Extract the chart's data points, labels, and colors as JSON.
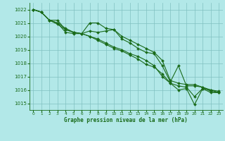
{
  "title": "Graphe pression niveau de la mer (hPa)",
  "bg_color": "#b2e8e8",
  "grid_color": "#80c0c0",
  "line_color": "#1a6b1a",
  "xlim": [
    -0.5,
    23.5
  ],
  "ylim": [
    1014.5,
    1022.5
  ],
  "yticks": [
    1015,
    1016,
    1017,
    1018,
    1019,
    1020,
    1021,
    1022
  ],
  "xticks": [
    0,
    1,
    2,
    3,
    4,
    5,
    6,
    7,
    8,
    9,
    10,
    11,
    12,
    13,
    14,
    15,
    16,
    17,
    18,
    19,
    20,
    21,
    22,
    23
  ],
  "series": [
    [
      1022.0,
      1021.8,
      1021.2,
      1021.2,
      1020.5,
      1020.3,
      1020.2,
      1021.0,
      1021.0,
      1020.6,
      1020.5,
      1019.8,
      1019.5,
      1019.1,
      1018.8,
      1018.7,
      1017.8,
      1016.6,
      1017.8,
      1016.3,
      1016.3,
      1016.2,
      1015.9,
      1015.8
    ],
    [
      1022.0,
      1021.8,
      1021.2,
      1021.0,
      1020.3,
      1020.2,
      1020.2,
      1020.4,
      1020.3,
      1020.4,
      1020.5,
      1020.0,
      1019.7,
      1019.4,
      1019.1,
      1018.8,
      1018.2,
      1016.7,
      1016.5,
      1016.4,
      1016.4,
      1016.2,
      1016.0,
      1015.9
    ],
    [
      1022.0,
      1021.8,
      1021.2,
      1020.9,
      1020.5,
      1020.3,
      1020.2,
      1020.0,
      1019.8,
      1019.5,
      1019.2,
      1019.0,
      1018.7,
      1018.5,
      1018.2,
      1017.8,
      1017.0,
      1016.5,
      1016.3,
      1016.2,
      1015.5,
      1016.1,
      1016.0,
      1015.8
    ],
    [
      1022.0,
      1021.8,
      1021.2,
      1021.0,
      1020.6,
      1020.3,
      1020.2,
      1020.0,
      1019.7,
      1019.4,
      1019.1,
      1018.9,
      1018.6,
      1018.3,
      1017.9,
      1017.7,
      1017.2,
      1016.5,
      1016.0,
      1016.1,
      1014.9,
      1016.1,
      1015.8,
      1015.8
    ]
  ]
}
